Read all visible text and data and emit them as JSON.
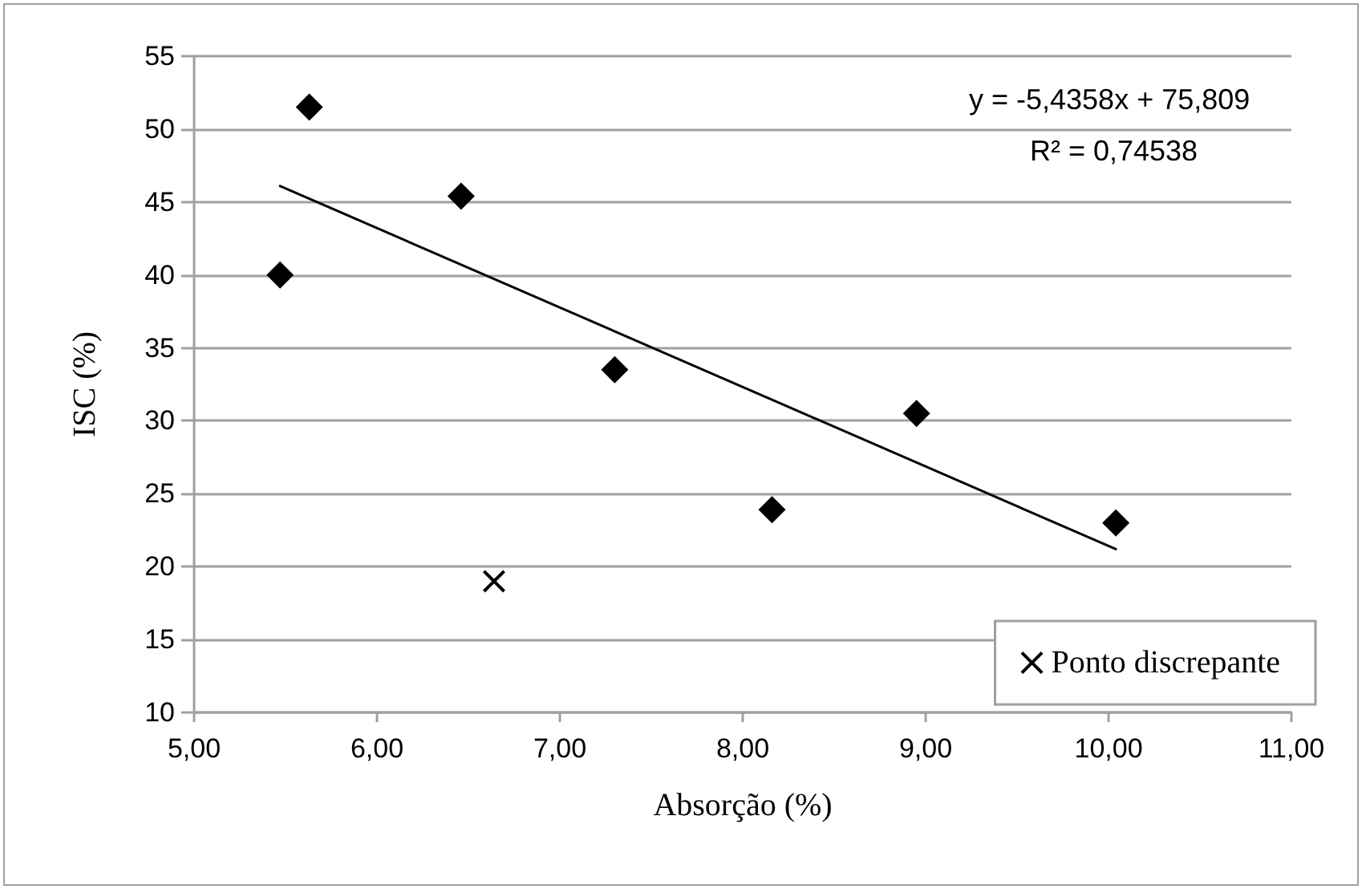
{
  "chart_data": {
    "type": "scatter",
    "xlabel": "Absorção (%)",
    "ylabel": "ISC (%)",
    "series": [
      {
        "color": "#000000",
        "marker": "diamond",
        "x": [
          5.47,
          5.63,
          6.46,
          7.3,
          8.16,
          8.95,
          10.04
        ],
        "values": [
          40.0,
          51.5,
          45.4,
          33.5,
          23.9,
          30.5,
          23.0
        ]
      },
      {
        "name": "Ponto discrepante",
        "color": "#000000",
        "marker": "cross",
        "x": [
          6.64
        ],
        "values": [
          19
        ]
      },
      {
        "type": "line",
        "color": "#000000",
        "marker": "none",
        "line_style": "solid",
        "x": [
          5.47,
          10.04
        ],
        "values": [
          46.1,
          21.2
        ]
      }
    ],
    "annotations": [
      "y = -5,4358x + 75,809",
      "R² = 0,74538"
    ],
    "xlim": [
      5,
      11
    ],
    "xticks": [
      {
        "value": 5,
        "label": "5,00"
      },
      {
        "value": 6,
        "label": "6,00"
      },
      {
        "value": 7,
        "label": "7,00"
      },
      {
        "value": 8,
        "label": "8,00"
      },
      {
        "value": 9,
        "label": "9,00"
      },
      {
        "value": 10,
        "label": "10,00"
      },
      {
        "value": 11,
        "label": "11,00"
      }
    ],
    "ylim": [
      10,
      55
    ],
    "yticks": [
      10,
      15,
      20,
      25,
      30,
      35,
      40,
      45,
      50,
      55
    ],
    "grid": "y",
    "legend": "bottom right"
  }
}
